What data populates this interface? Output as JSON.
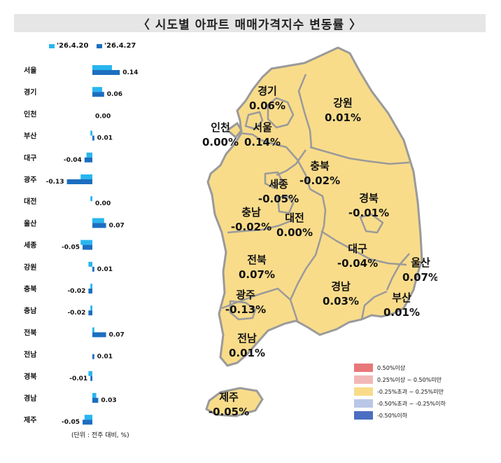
{
  "title": "〈  시도별 아파트 매매가격지수 변동률  〉",
  "unit_note": "(단위 : 전주 대비, %)",
  "colors": {
    "series_prev": "#29b6ef",
    "series_curr": "#1c6ec0",
    "map_fill": "#f9dc8a",
    "map_border": "#9a9a9a",
    "title_bg": "#e6e6e6"
  },
  "chart_data": {
    "type": "bar",
    "orientation": "horizontal",
    "categories": [
      "서울",
      "경기",
      "인천",
      "부산",
      "대구",
      "광주",
      "대전",
      "울산",
      "세종",
      "강원",
      "충북",
      "충남",
      "전북",
      "전남",
      "경북",
      "경남",
      "제주"
    ],
    "series": [
      {
        "name": "'26.4.20",
        "values": [
          0.1,
          0.05,
          0.0,
          -0.01,
          -0.03,
          -0.06,
          -0.01,
          0.06,
          -0.06,
          -0.02,
          -0.01,
          -0.01,
          0.01,
          0.0,
          -0.02,
          0.02,
          -0.04
        ]
      },
      {
        "name": "'26.4.27",
        "values": [
          0.14,
          0.06,
          0.0,
          0.01,
          -0.04,
          -0.13,
          0.0,
          0.07,
          -0.05,
          0.01,
          -0.02,
          -0.02,
          0.07,
          0.01,
          -0.01,
          0.03,
          -0.05
        ]
      }
    ],
    "data_labels": [
      "0.14",
      "0.06",
      "0.00",
      "0.01",
      "-0.04",
      "-0.13",
      "0.00",
      "0.07",
      "-0.05",
      "0.01",
      "-0.02",
      "-0.02",
      "0.07",
      "0.01",
      "-0.01",
      "0.03",
      "-0.05"
    ],
    "legend_position": "top"
  },
  "map": {
    "regions": [
      {
        "name": "경기",
        "value": "0.06%"
      },
      {
        "name": "인천",
        "value": "0.00%"
      },
      {
        "name": "서울",
        "value": "0.14%"
      },
      {
        "name": "강원",
        "value": "0.01%"
      },
      {
        "name": "충북",
        "value": "-0.02%"
      },
      {
        "name": "세종",
        "value": "-0.05%"
      },
      {
        "name": "경북",
        "value": "-0.01%"
      },
      {
        "name": "충남",
        "value": "-0.02%"
      },
      {
        "name": "대전",
        "value": "0.00%"
      },
      {
        "name": "대구",
        "value": "-0.04%"
      },
      {
        "name": "울산",
        "value": "0.07%"
      },
      {
        "name": "전북",
        "value": "0.07%"
      },
      {
        "name": "경남",
        "value": "0.03%"
      },
      {
        "name": "광주",
        "value": "-0.13%"
      },
      {
        "name": "부산",
        "value": "0.01%"
      },
      {
        "name": "전남",
        "value": "0.01%"
      },
      {
        "name": "제주",
        "value": "-0.05%"
      }
    ],
    "legend": [
      {
        "label": "0.50%이상",
        "color": "#e8777a"
      },
      {
        "label": "0.25%이상 ~ 0.50%미만",
        "color": "#f2b8b8"
      },
      {
        "label": "-0.25%초과 ~ 0.25%미만",
        "color": "#f9dc8a"
      },
      {
        "label": "-0.50%초과 ~ -0.25%이하",
        "color": "#b9c6e6"
      },
      {
        "label": "-0.50%이하",
        "color": "#4a6fc2"
      }
    ]
  }
}
